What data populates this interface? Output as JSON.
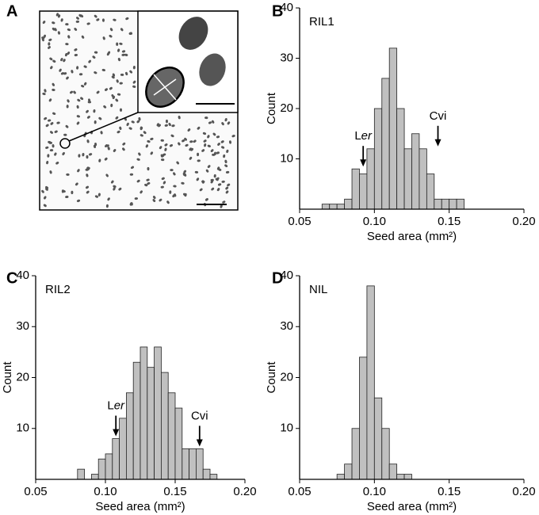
{
  "panel_a": {
    "label": "A"
  },
  "chart_data": [
    {
      "type": "histogram",
      "panel": "B",
      "title": "RIL1",
      "x_label": "Seed area (mm²)",
      "y_label": "Count",
      "bins": [
        0.065,
        0.07,
        0.075,
        0.08,
        0.085,
        0.09,
        0.095,
        0.1,
        0.105,
        0.11,
        0.115,
        0.12,
        0.125,
        0.13,
        0.135,
        0.14,
        0.145,
        0.15,
        0.155,
        0.16
      ],
      "counts": [
        1,
        1,
        1,
        2,
        8,
        7,
        12,
        20,
        26,
        32,
        20,
        12,
        15,
        12,
        7,
        2,
        2,
        2,
        2
      ],
      "color": "#c0c0c0",
      "xlim": [
        0.05,
        0.2
      ],
      "xticks": [
        0.05,
        {
          "value": 0.1,
          "label": "0.10"
        },
        0.15,
        {
          "value": 0.2,
          "label": "0.20"
        }
      ],
      "ylim": [
        0,
        40
      ],
      "yticks": [
        10,
        20,
        30,
        40
      ],
      "annotations": [
        {
          "text_parts": [
            {
              "text": "L"
            },
            {
              "text": "er",
              "italic": true
            }
          ],
          "x": 0.0925,
          "y": 8
        },
        {
          "text_parts": [
            {
              "text": "Cvi"
            }
          ],
          "x": 0.1425,
          "y": 12
        }
      ]
    },
    {
      "type": "histogram",
      "panel": "C",
      "title": "RIL2",
      "x_label": "Seed area (mm²)",
      "y_label": "Count",
      "bins": [
        0.08,
        0.085,
        0.09,
        0.095,
        0.1,
        0.105,
        0.11,
        0.115,
        0.12,
        0.125,
        0.13,
        0.135,
        0.14,
        0.145,
        0.15,
        0.155,
        0.16,
        0.165,
        0.17,
        0.175,
        0.18
      ],
      "counts": [
        2,
        0,
        1,
        4,
        5,
        8,
        12,
        17,
        23,
        26,
        22,
        26,
        21,
        17,
        14,
        6,
        6,
        6,
        2,
        1
      ],
      "color": "#c0c0c0",
      "xlim": [
        0.05,
        0.2
      ],
      "xticks": [
        0.05,
        {
          "value": 0.1,
          "label": "0.10"
        },
        0.15,
        {
          "value": 0.2,
          "label": "0.20"
        }
      ],
      "ylim": [
        0,
        40
      ],
      "yticks": [
        10,
        20,
        30,
        40
      ],
      "annotations": [
        {
          "text_parts": [
            {
              "text": "L"
            },
            {
              "text": "er",
              "italic": true
            }
          ],
          "x": 0.1075,
          "y": 8
        },
        {
          "text_parts": [
            {
              "text": "Cvi"
            }
          ],
          "x": 0.1675,
          "y": 6
        }
      ]
    },
    {
      "type": "histogram",
      "panel": "D",
      "title": "NIL",
      "x_label": "Seed area (mm²)",
      "y_label": "Count",
      "bins": [
        0.075,
        0.08,
        0.085,
        0.09,
        0.095,
        0.1,
        0.105,
        0.11,
        0.115,
        0.12,
        0.125
      ],
      "counts": [
        1,
        3,
        10,
        24,
        38,
        16,
        10,
        3,
        1,
        1
      ],
      "color": "#c0c0c0",
      "xlim": [
        0.05,
        0.2
      ],
      "xticks": [
        0.05,
        {
          "value": 0.1,
          "label": "0.10"
        },
        0.15,
        {
          "value": 0.2,
          "label": "0.20"
        }
      ],
      "ylim": [
        0,
        40
      ],
      "yticks": [
        10,
        20,
        30,
        40
      ],
      "annotations": []
    }
  ]
}
